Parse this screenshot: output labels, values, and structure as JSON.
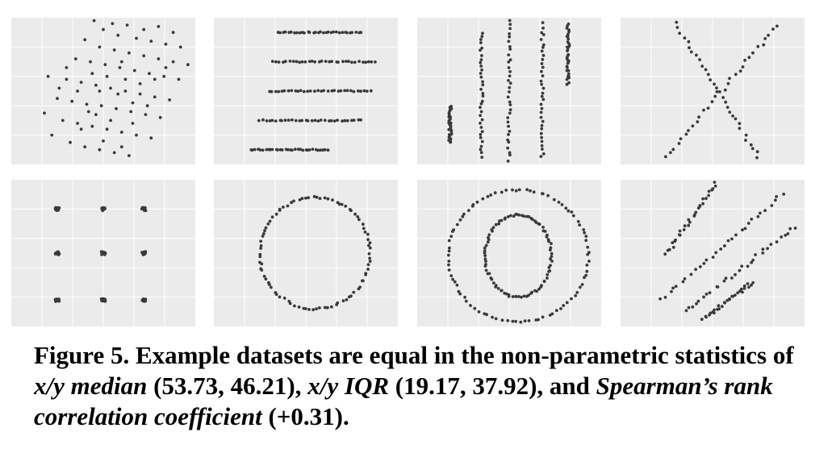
{
  "colors": {
    "panel_bg": "#ebebeb",
    "grid_line": "#ffffff",
    "point": "#3a3a3a"
  },
  "caption": {
    "figure_label": "Figure 5.",
    "text_1": " Example datasets are equal in the non-parametric statistics of ",
    "median_term": "x/y median",
    "median_values": " (53.73, 46.21), ",
    "iqr_term": "x/y IQR",
    "iqr_values": " (19.17, 37.92), and ",
    "spearman_term": "Spearman’s rank correlation coefficient",
    "spearman_value": " (+0.31)."
  },
  "chart_data": [
    {
      "type": "scatter",
      "dataset": "random cloud",
      "xlim": [
        0,
        100
      ],
      "ylim": [
        0,
        100
      ],
      "grid": true,
      "points": [
        [
          45,
          98
        ],
        [
          55,
          96
        ],
        [
          63,
          95
        ],
        [
          72,
          92
        ],
        [
          80,
          94
        ],
        [
          88,
          90
        ],
        [
          50,
          92
        ],
        [
          58,
          88
        ],
        [
          68,
          86
        ],
        [
          76,
          84
        ],
        [
          84,
          82
        ],
        [
          92,
          80
        ],
        [
          40,
          85
        ],
        [
          48,
          80
        ],
        [
          56,
          78
        ],
        [
          64,
          76
        ],
        [
          72,
          74
        ],
        [
          80,
          72
        ],
        [
          88,
          70
        ],
        [
          96,
          68
        ],
        [
          35,
          72
        ],
        [
          43,
          70
        ],
        [
          51,
          68
        ],
        [
          59,
          66
        ],
        [
          67,
          64
        ],
        [
          75,
          62
        ],
        [
          83,
          60
        ],
        [
          91,
          58
        ],
        [
          20,
          60
        ],
        [
          30,
          58
        ],
        [
          38,
          56
        ],
        [
          46,
          54
        ],
        [
          54,
          52
        ],
        [
          62,
          50
        ],
        [
          70,
          48
        ],
        [
          78,
          46
        ],
        [
          86,
          44
        ],
        [
          25,
          45
        ],
        [
          33,
          43
        ],
        [
          41,
          41
        ],
        [
          49,
          40
        ],
        [
          57,
          38
        ],
        [
          65,
          36
        ],
        [
          73,
          34
        ],
        [
          81,
          32
        ],
        [
          28,
          30
        ],
        [
          36,
          28
        ],
        [
          44,
          26
        ],
        [
          52,
          24
        ],
        [
          60,
          22
        ],
        [
          68,
          20
        ],
        [
          76,
          18
        ],
        [
          32,
          15
        ],
        [
          40,
          12
        ],
        [
          48,
          10
        ],
        [
          56,
          8
        ],
        [
          64,
          6
        ],
        [
          22,
          20
        ],
        [
          18,
          35
        ],
        [
          60,
          70
        ],
        [
          52,
          60
        ],
        [
          58,
          48
        ],
        [
          62,
          58
        ],
        [
          48,
          50
        ],
        [
          44,
          62
        ],
        [
          66,
          42
        ],
        [
          70,
          55
        ],
        [
          54,
          30
        ],
        [
          36,
          50
        ],
        [
          42,
          36
        ],
        [
          50,
          16
        ],
        [
          60,
          12
        ],
        [
          66,
          28
        ],
        [
          74,
          40
        ],
        [
          78,
          58
        ],
        [
          84,
          66
        ],
        [
          30,
          66
        ],
        [
          26,
          52
        ],
        [
          38,
          24
        ],
        [
          46,
          34
        ]
      ]
    },
    {
      "type": "scatter",
      "dataset": "horizontal bands",
      "xlim": [
        0,
        100
      ],
      "ylim": [
        0,
        100
      ],
      "grid": true,
      "bands": [
        {
          "y": 90,
          "x_min": 35,
          "x_max": 80
        },
        {
          "y": 70,
          "x_min": 32,
          "x_max": 88
        },
        {
          "y": 50,
          "x_min": 30,
          "x_max": 85
        },
        {
          "y": 30,
          "x_min": 25,
          "x_max": 80
        },
        {
          "y": 10,
          "x_min": 20,
          "x_max": 62
        }
      ]
    },
    {
      "type": "scatter",
      "dataset": "vertical lines",
      "xlim": [
        0,
        100
      ],
      "ylim": [
        0,
        100
      ],
      "grid": true,
      "lines": [
        {
          "x": 18,
          "y_min": 15,
          "y_max": 40
        },
        {
          "x": 35,
          "y_min": 5,
          "y_max": 90
        },
        {
          "x": 50,
          "y_min": 3,
          "y_max": 98
        },
        {
          "x": 68,
          "y_min": 5,
          "y_max": 96
        },
        {
          "x": 82,
          "y_min": 55,
          "y_max": 95
        }
      ]
    },
    {
      "type": "scatter",
      "dataset": "x shape",
      "xlim": [
        0,
        100
      ],
      "ylim": [
        0,
        100
      ],
      "grid": true,
      "lines": [
        {
          "x1": 30,
          "y1": 96,
          "x2": 75,
          "y2": 5
        },
        {
          "x1": 25,
          "y1": 5,
          "x2": 85,
          "y2": 95
        }
      ]
    },
    {
      "type": "scatter",
      "dataset": "grid clusters",
      "xlim": [
        0,
        100
      ],
      "ylim": [
        0,
        100
      ],
      "grid": true,
      "clusters": [
        [
          25,
          80
        ],
        [
          50,
          80
        ],
        [
          72,
          80
        ],
        [
          25,
          50
        ],
        [
          50,
          50
        ],
        [
          72,
          50
        ],
        [
          25,
          18
        ],
        [
          50,
          18
        ],
        [
          72,
          18
        ]
      ]
    },
    {
      "type": "scatter",
      "dataset": "circle",
      "xlim": [
        0,
        100
      ],
      "ylim": [
        0,
        100
      ],
      "grid": true,
      "circle": {
        "cx": 55,
        "cy": 50,
        "rx": 30,
        "ry": 38
      }
    },
    {
      "type": "scatter",
      "dataset": "concentric arcs",
      "xlim": [
        0,
        100
      ],
      "ylim": [
        0,
        100
      ],
      "grid": true,
      "circles": [
        {
          "cx": 55,
          "cy": 48,
          "rx": 18,
          "ry": 28
        },
        {
          "cx": 55,
          "cy": 48,
          "rx": 38,
          "ry": 45
        }
      ]
    },
    {
      "type": "scatter",
      "dataset": "parallel lines",
      "xlim": [
        0,
        100
      ],
      "ylim": [
        0,
        100
      ],
      "grid": true,
      "lines": [
        {
          "x1": 25,
          "y1": 50,
          "x2": 52,
          "y2": 98
        },
        {
          "x1": 22,
          "y1": 18,
          "x2": 88,
          "y2": 90
        },
        {
          "x1": 35,
          "y1": 10,
          "x2": 95,
          "y2": 68
        },
        {
          "x1": 45,
          "y1": 5,
          "x2": 72,
          "y2": 30
        }
      ]
    }
  ]
}
